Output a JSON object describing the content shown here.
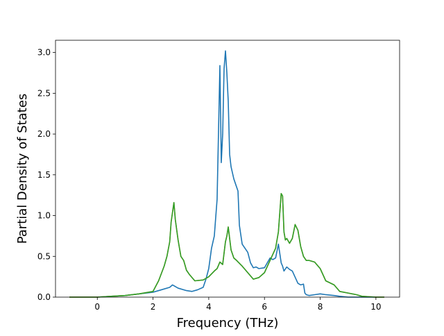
{
  "chart_data": {
    "type": "line",
    "xlabel": "Frequency (THz)",
    "ylabel": "Partial Density of States",
    "xlim": [
      -1.5,
      10.85
    ],
    "ylim": [
      0,
      3.15
    ],
    "x_ticks": [
      0,
      2,
      4,
      6,
      8,
      10
    ],
    "x_tick_labels": [
      "0",
      "2",
      "4",
      "6",
      "8",
      "10"
    ],
    "y_ticks": [
      0.0,
      0.5,
      1.0,
      1.5,
      2.0,
      2.5,
      3.0
    ],
    "y_tick_labels": [
      "0.0",
      "0.5",
      "1.0",
      "1.5",
      "2.0",
      "2.5",
      "3.0"
    ],
    "grid": false,
    "series": [
      {
        "color": "#1f77b4",
        "x": [
          -1.0,
          -0.5,
          0.0,
          0.5,
          1.0,
          1.5,
          2.0,
          2.3,
          2.6,
          2.7,
          2.9,
          3.2,
          3.4,
          3.6,
          3.8,
          3.9,
          4.0,
          4.1,
          4.2,
          4.3,
          4.4,
          4.45,
          4.5,
          4.55,
          4.6,
          4.65,
          4.7,
          4.75,
          4.8,
          4.9,
          5.0,
          5.05,
          5.1,
          5.2,
          5.3,
          5.4,
          5.5,
          5.6,
          5.7,
          5.8,
          6.0,
          6.2,
          6.3,
          6.4,
          6.5,
          6.6,
          6.65,
          6.7,
          6.8,
          6.9,
          7.0,
          7.2,
          7.3,
          7.4,
          7.45,
          7.5,
          7.6,
          7.8,
          8.0,
          8.2,
          8.5,
          8.7,
          9.0,
          9.5,
          10.0,
          10.3
        ],
        "y": [
          0.0,
          0.0,
          0.0,
          0.01,
          0.02,
          0.04,
          0.06,
          0.09,
          0.12,
          0.15,
          0.11,
          0.08,
          0.07,
          0.09,
          0.12,
          0.22,
          0.35,
          0.6,
          0.75,
          1.2,
          2.84,
          1.65,
          2.0,
          2.8,
          3.02,
          2.75,
          2.4,
          1.75,
          1.6,
          1.45,
          1.35,
          1.3,
          0.88,
          0.65,
          0.6,
          0.55,
          0.42,
          0.36,
          0.37,
          0.35,
          0.36,
          0.48,
          0.46,
          0.48,
          0.65,
          0.42,
          0.38,
          0.32,
          0.37,
          0.34,
          0.32,
          0.17,
          0.15,
          0.16,
          0.05,
          0.03,
          0.02,
          0.03,
          0.04,
          0.03,
          0.02,
          0.01,
          0.0,
          0.0,
          0.0,
          0.0
        ]
      },
      {
        "color": "#ff7f0e",
        "x": [
          -1.0,
          -0.5,
          0.0,
          0.5,
          1.0,
          1.5,
          2.0,
          2.2,
          2.4,
          2.5,
          2.6,
          2.65,
          2.75,
          2.8,
          2.9,
          3.0,
          3.1,
          3.2,
          3.3,
          3.5,
          3.8,
          4.0,
          4.2,
          4.3,
          4.4,
          4.5,
          4.6,
          4.65,
          4.7,
          4.8,
          4.9,
          5.0,
          5.2,
          5.4,
          5.6,
          5.8,
          6.0,
          6.2,
          6.4,
          6.5,
          6.6,
          6.65,
          6.7,
          6.75,
          6.8,
          6.9,
          7.0,
          7.1,
          7.2,
          7.3,
          7.4,
          7.5,
          7.6,
          7.8,
          8.0,
          8.2,
          8.5,
          8.7,
          9.0,
          9.3,
          9.5,
          10.0,
          10.3
        ],
        "y": [
          0.0,
          0.0,
          0.0,
          0.01,
          0.02,
          0.04,
          0.07,
          0.2,
          0.38,
          0.5,
          0.68,
          0.92,
          1.16,
          0.95,
          0.7,
          0.5,
          0.45,
          0.33,
          0.28,
          0.2,
          0.21,
          0.25,
          0.32,
          0.35,
          0.43,
          0.4,
          0.68,
          0.75,
          0.86,
          0.58,
          0.48,
          0.45,
          0.38,
          0.3,
          0.22,
          0.24,
          0.3,
          0.45,
          0.6,
          0.8,
          1.27,
          1.24,
          0.8,
          0.7,
          0.72,
          0.66,
          0.72,
          0.89,
          0.82,
          0.62,
          0.5,
          0.45,
          0.45,
          0.43,
          0.35,
          0.2,
          0.15,
          0.07,
          0.05,
          0.03,
          0.01,
          0.0,
          0.0
        ]
      },
      {
        "color": "#2ca02c",
        "x": [
          -1.0,
          -0.5,
          0.0,
          0.5,
          1.0,
          1.5,
          2.0,
          2.2,
          2.4,
          2.5,
          2.6,
          2.65,
          2.75,
          2.8,
          2.9,
          3.0,
          3.1,
          3.2,
          3.3,
          3.5,
          3.8,
          4.0,
          4.2,
          4.3,
          4.4,
          4.5,
          4.6,
          4.65,
          4.7,
          4.8,
          4.9,
          5.0,
          5.2,
          5.4,
          5.6,
          5.8,
          6.0,
          6.2,
          6.4,
          6.5,
          6.6,
          6.65,
          6.7,
          6.75,
          6.8,
          6.9,
          7.0,
          7.1,
          7.2,
          7.3,
          7.4,
          7.5,
          7.6,
          7.8,
          8.0,
          8.2,
          8.5,
          8.7,
          9.0,
          9.3,
          9.5,
          10.0,
          10.3
        ],
        "y": [
          0.0,
          0.0,
          0.0,
          0.01,
          0.02,
          0.04,
          0.07,
          0.2,
          0.38,
          0.5,
          0.68,
          0.92,
          1.16,
          0.95,
          0.7,
          0.5,
          0.45,
          0.33,
          0.28,
          0.2,
          0.21,
          0.25,
          0.32,
          0.35,
          0.43,
          0.4,
          0.68,
          0.75,
          0.86,
          0.58,
          0.48,
          0.45,
          0.38,
          0.3,
          0.22,
          0.24,
          0.3,
          0.45,
          0.6,
          0.8,
          1.27,
          1.24,
          0.8,
          0.7,
          0.72,
          0.66,
          0.72,
          0.89,
          0.82,
          0.62,
          0.5,
          0.45,
          0.45,
          0.43,
          0.35,
          0.2,
          0.15,
          0.07,
          0.05,
          0.03,
          0.01,
          0.0,
          0.0
        ]
      }
    ]
  }
}
